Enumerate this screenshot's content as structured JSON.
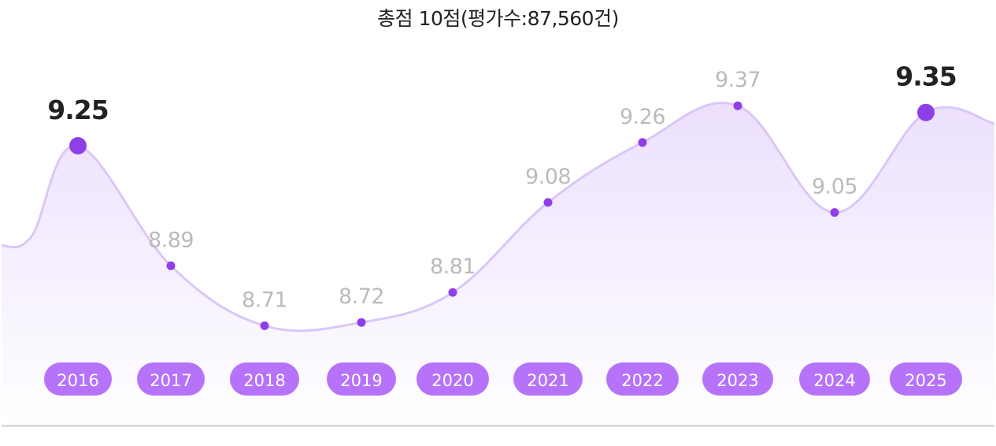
{
  "title": "총점 10점(평가수:87,560건)",
  "colors": {
    "line": "#dac7f7",
    "point": "#8e3fe8",
    "area_top": "#ece0fd",
    "area_bottom": "#ffffff",
    "pill": "#b673f9",
    "pill_text": "#ffffff",
    "label": "#bbbbbb",
    "label_highlight": "#222222",
    "baseline": "#cccccc"
  },
  "chart_data": {
    "type": "area",
    "categories": [
      "2016",
      "2017",
      "2018",
      "2019",
      "2020",
      "2021",
      "2022",
      "2023",
      "2024",
      "2025"
    ],
    "values": [
      9.25,
      8.89,
      8.71,
      8.72,
      8.81,
      9.08,
      9.26,
      9.37,
      9.05,
      9.35
    ],
    "value_labels": [
      "9.25",
      "8.89",
      "8.71",
      "8.72",
      "8.81",
      "9.08",
      "9.26",
      "9.37",
      "9.05",
      "9.35"
    ],
    "highlighted": [
      "2016",
      "2025"
    ],
    "grid": false,
    "legend": "none"
  }
}
